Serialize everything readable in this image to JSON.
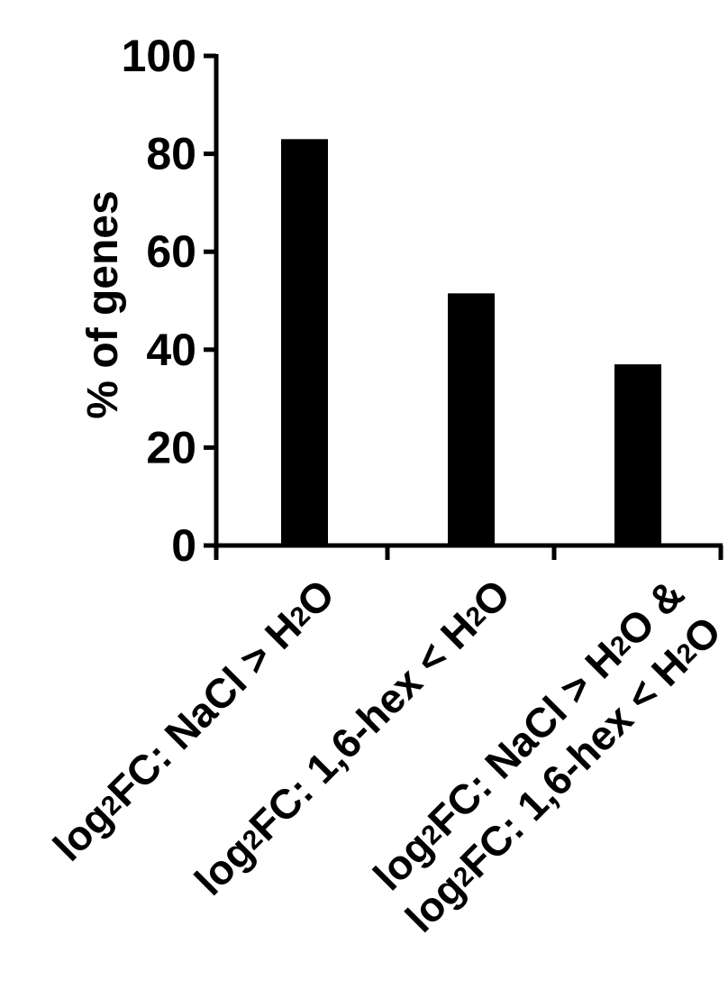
{
  "chart_data": {
    "type": "bar",
    "title": "",
    "xlabel": "",
    "ylabel": "% of genes",
    "ylim": [
      0,
      100
    ],
    "yticks": [
      "0",
      "20",
      "40",
      "60",
      "80",
      "100"
    ],
    "grid": false,
    "legend": "none",
    "bar_color": "#000000",
    "categories": [
      {
        "lines": [
          [
            {
              "t": "log"
            },
            {
              "t": "2",
              "sub": true
            },
            {
              "t": "FC: NaCl > H"
            },
            {
              "t": "2",
              "sub": true
            },
            {
              "t": "O"
            }
          ]
        ]
      },
      {
        "lines": [
          [
            {
              "t": "log"
            },
            {
              "t": "2",
              "sub": true
            },
            {
              "t": "FC: 1,6-hex < H"
            },
            {
              "t": "2",
              "sub": true
            },
            {
              "t": "O"
            }
          ]
        ]
      },
      {
        "lines": [
          [
            {
              "t": "log"
            },
            {
              "t": "2",
              "sub": true
            },
            {
              "t": "FC: NaCl > H"
            },
            {
              "t": "2",
              "sub": true
            },
            {
              "t": "O &"
            }
          ],
          [
            {
              "t": "log"
            },
            {
              "t": "2",
              "sub": true
            },
            {
              "t": "FC: 1,6-hex < H"
            },
            {
              "t": "2",
              "sub": true
            },
            {
              "t": "O"
            }
          ]
        ]
      }
    ],
    "values": [
      83,
      51.5,
      37
    ]
  }
}
